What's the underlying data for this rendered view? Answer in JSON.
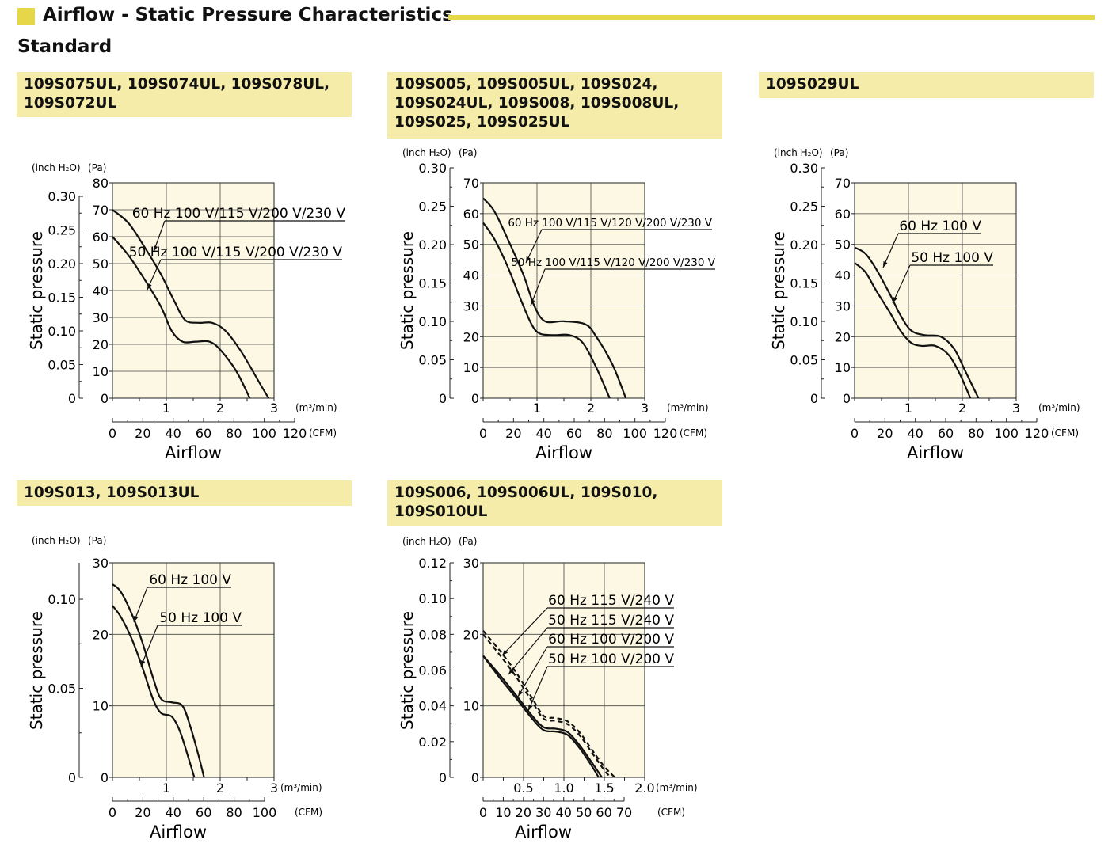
{
  "header": {
    "title": "Airflow - Static Pressure Characteristics",
    "subtitle": "Standard"
  },
  "colors": {
    "accent": "#e6d64a",
    "model_box": "#f4eca8",
    "plot_bg": "#fcf8e4"
  },
  "chart_data": [
    {
      "type": "line",
      "models": "109S075UL, 109S074UL, 109S078UL,\n109S072UL",
      "ylabel": "Static pressure",
      "xlabel": "Airflow",
      "y_unit_pa": "(Pa)",
      "y_unit_inch": "(inch H₂O)",
      "x_unit_m3": "(m³/min)",
      "x_unit_cfm": "(CFM)",
      "ylim_pa": [
        0,
        80
      ],
      "xlim_m3": [
        0,
        3
      ],
      "pa_ticks": [
        "0",
        "10",
        "20",
        "30",
        "40",
        "50",
        "60",
        "70",
        "80"
      ],
      "inch_ticks": [
        "0",
        "0.05",
        "0.10",
        "0.15",
        "0.20",
        "0.25",
        "0.30"
      ],
      "m3_ticks": [
        "1",
        "2",
        "3"
      ],
      "cfm_ticks": [
        "0",
        "20",
        "40",
        "60",
        "80",
        "100",
        "120"
      ],
      "series": [
        {
          "name": "60 Hz 100 V/115 V/200 V/230 V",
          "dashed": false,
          "x": [
            0,
            0.3,
            0.6,
            0.9,
            1.15,
            1.35,
            1.6,
            1.85,
            2.1,
            2.4,
            2.75,
            2.9
          ],
          "y": [
            70,
            65,
            56,
            46,
            36,
            29,
            28,
            28,
            25,
            17,
            5,
            0
          ]
        },
        {
          "name": "50 Hz 100 V/115 V/200 V/230 V",
          "dashed": false,
          "x": [
            0,
            0.3,
            0.6,
            0.9,
            1.1,
            1.3,
            1.55,
            1.8,
            2.0,
            2.3,
            2.55
          ],
          "y": [
            60,
            53,
            44,
            34,
            25,
            21,
            21,
            21,
            18,
            10,
            0
          ]
        }
      ]
    },
    {
      "type": "line",
      "models": "109S005, 109S005UL, 109S024,\n109S024UL, 109S008, 109S008UL,\n109S025, 109S025UL",
      "ylabel": "Static pressure",
      "xlabel": "Airflow",
      "y_unit_pa": "(Pa)",
      "y_unit_inch": "(inch H₂O)",
      "x_unit_m3": "(m³/min)",
      "x_unit_cfm": "(CFM)",
      "ylim_pa": [
        0,
        70
      ],
      "xlim_m3": [
        0,
        3
      ],
      "pa_ticks": [
        "0",
        "10",
        "20",
        "30",
        "40",
        "50",
        "60",
        "70"
      ],
      "inch_ticks": [
        "0",
        "0.05",
        "0.10",
        "0.15",
        "0.20",
        "0.25",
        "0.30"
      ],
      "m3_ticks": [
        "1",
        "2",
        "3"
      ],
      "cfm_ticks": [
        "0",
        "20",
        "40",
        "60",
        "80",
        "100",
        "120"
      ],
      "series": [
        {
          "name": "60 Hz 100 V/115 V/120 V/200 V/230 V",
          "dashed": false,
          "x": [
            0,
            0.2,
            0.45,
            0.75,
            0.95,
            1.15,
            1.5,
            1.9,
            2.1,
            2.4,
            2.65
          ],
          "y": [
            65,
            61,
            52,
            40,
            30,
            25,
            25,
            24,
            20,
            11,
            0
          ]
        },
        {
          "name": "50 Hz 100 V/115 V/120 V/200 V/230 V",
          "dashed": false,
          "x": [
            0,
            0.2,
            0.45,
            0.7,
            0.9,
            1.05,
            1.3,
            1.6,
            1.85,
            2.1,
            2.35
          ],
          "y": [
            57,
            52,
            43,
            32,
            24,
            21,
            20.5,
            20.5,
            18,
            10,
            0
          ]
        }
      ]
    },
    {
      "type": "line",
      "models": "109S029UL",
      "ylabel": "Static pressure",
      "xlabel": "Airflow",
      "y_unit_pa": "(Pa)",
      "y_unit_inch": "(inch H₂O)",
      "x_unit_m3": "(m³/min)",
      "x_unit_cfm": "(CFM)",
      "ylim_pa": [
        0,
        70
      ],
      "xlim_m3": [
        0,
        3
      ],
      "pa_ticks": [
        "0",
        "10",
        "20",
        "30",
        "40",
        "50",
        "60",
        "70"
      ],
      "inch_ticks": [
        "0",
        "0.05",
        "0.10",
        "0.15",
        "0.20",
        "0.25",
        "0.30"
      ],
      "m3_ticks": [
        "1",
        "2",
        "3"
      ],
      "cfm_ticks": [
        "0",
        "20",
        "40",
        "60",
        "80",
        "100",
        "120"
      ],
      "series": [
        {
          "name": "60 Hz 100 V",
          "dashed": false,
          "x": [
            0,
            0.2,
            0.4,
            0.65,
            0.85,
            1.05,
            1.3,
            1.6,
            1.85,
            2.05,
            2.3
          ],
          "y": [
            49,
            47,
            42,
            34,
            27,
            22,
            20.5,
            20,
            16,
            9,
            0
          ]
        },
        {
          "name": "50 Hz 100 V",
          "dashed": false,
          "x": [
            0,
            0.2,
            0.4,
            0.65,
            0.85,
            1.05,
            1.25,
            1.5,
            1.75,
            1.95,
            2.15
          ],
          "y": [
            44,
            41,
            35,
            28,
            22,
            18,
            17,
            17,
            14,
            8,
            0
          ]
        }
      ]
    },
    {
      "type": "line",
      "models": "109S013, 109S013UL",
      "ylabel": "Static pressure",
      "xlabel": "Airflow",
      "y_unit_pa": "(Pa)",
      "y_unit_inch": "(inch H₂O)",
      "x_unit_m3": "(m³/min)",
      "x_unit_cfm": "(CFM)",
      "ylim_pa": [
        0,
        30
      ],
      "xlim_m3": [
        0,
        3
      ],
      "pa_ticks": [
        "0",
        "10",
        "20",
        "30"
      ],
      "inch_ticks": [
        "0",
        "0.05",
        "0.10"
      ],
      "m3_ticks": [
        "1",
        "2",
        "3"
      ],
      "cfm_ticks": [
        "0",
        "20",
        "40",
        "60",
        "80",
        "100"
      ],
      "series": [
        {
          "name": "60 Hz 100 V",
          "dashed": false,
          "x": [
            0,
            0.15,
            0.35,
            0.55,
            0.75,
            0.9,
            1.1,
            1.3,
            1.45,
            1.6,
            1.7
          ],
          "y": [
            27,
            26,
            23,
            19,
            14,
            11,
            10.5,
            10,
            7,
            3,
            0
          ]
        },
        {
          "name": "50 Hz 100 V",
          "dashed": false,
          "x": [
            0,
            0.15,
            0.35,
            0.55,
            0.75,
            0.9,
            1.1,
            1.25,
            1.4,
            1.52
          ],
          "y": [
            24,
            22.5,
            19.5,
            15.5,
            11,
            9,
            8.5,
            6.5,
            3,
            0
          ]
        }
      ]
    },
    {
      "type": "line",
      "models": "109S006, 109S006UL, 109S010,\n109S010UL",
      "ylabel": "Static pressure",
      "xlabel": "Airflow",
      "y_unit_pa": "(Pa)",
      "y_unit_inch": "(inch H₂O)",
      "x_unit_m3": "(m³/min)",
      "x_unit_cfm": "(CFM)",
      "ylim_pa": [
        0,
        30
      ],
      "xlim_m3": [
        0,
        2.0
      ],
      "pa_ticks": [
        "0",
        "10",
        "20",
        "30"
      ],
      "inch_ticks": [
        "0",
        "0.02",
        "0.04",
        "0.06",
        "0.08",
        "0.10",
        "0.12"
      ],
      "m3_ticks": [
        "0.5",
        "1.0",
        "1.5",
        "2.0"
      ],
      "cfm_ticks": [
        "0",
        "10",
        "20",
        "30",
        "40",
        "50",
        "60",
        "70"
      ],
      "series": [
        {
          "name": "60 Hz 115 V/240 V",
          "dashed": true,
          "x": [
            0,
            0.2,
            0.4,
            0.6,
            0.75,
            0.9,
            1.05,
            1.2,
            1.35,
            1.5,
            1.63
          ],
          "y": [
            20.5,
            17.8,
            14.8,
            11.2,
            8.6,
            8.3,
            7.8,
            6.2,
            3.8,
            1.5,
            0
          ]
        },
        {
          "name": "50 Hz 115 V/240 V",
          "dashed": true,
          "x": [
            0,
            0.2,
            0.4,
            0.6,
            0.75,
            0.9,
            1.05,
            1.2,
            1.35,
            1.5,
            1.58
          ],
          "y": [
            20,
            17.2,
            14.2,
            10.7,
            8.2,
            7.9,
            7.4,
            5.8,
            3.4,
            1.0,
            0
          ]
        },
        {
          "name": "60 Hz 100 V/200 V",
          "dashed": false,
          "x": [
            0,
            0.2,
            0.4,
            0.6,
            0.75,
            0.9,
            1.05,
            1.2,
            1.35,
            1.47
          ],
          "y": [
            17,
            14.4,
            11.6,
            8.7,
            7.0,
            6.8,
            6.3,
            4.4,
            2.0,
            0
          ]
        },
        {
          "name": "50 Hz 100 V/200 V",
          "dashed": false,
          "x": [
            0,
            0.2,
            0.4,
            0.6,
            0.75,
            0.9,
            1.05,
            1.2,
            1.35,
            1.43
          ],
          "y": [
            17,
            14.0,
            11.2,
            8.3,
            6.6,
            6.4,
            5.9,
            4.0,
            1.5,
            0
          ]
        }
      ]
    }
  ]
}
